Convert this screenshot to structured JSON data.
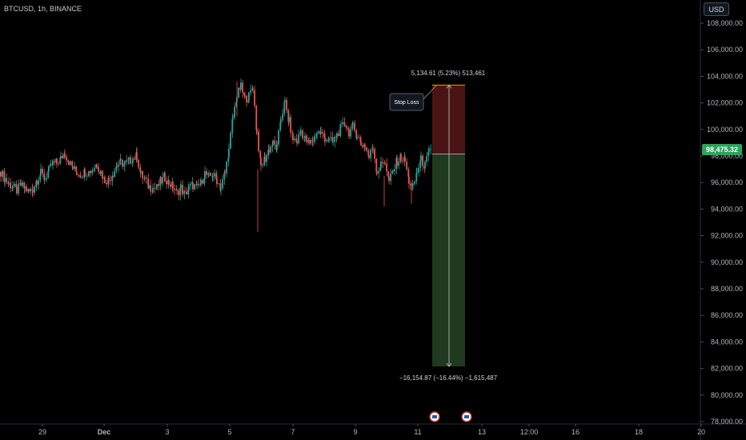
{
  "header": {
    "symbol": "BTCUSD, 1h, BINANCE",
    "currency": "USD"
  },
  "price_tag": "98,475.32",
  "position": {
    "stop_label": "Stop Loss",
    "top_label": "5,134.61 (5.23%) 513,461",
    "bottom_label": "−16,154.87 (−16.44%) −1,615,487",
    "entry": 98150,
    "stop": 103340,
    "target": 82150
  },
  "colors": {
    "up": "#26a69a",
    "down": "#ef5350",
    "stop_zone": "#4a1414",
    "target_zone": "#1f3a1f",
    "stop_line": "#e6a000",
    "price_tag": "#26a65b"
  },
  "icons": [
    "flag-icon",
    "flag-icon"
  ],
  "chart_data": {
    "type": "candlestick",
    "title": "BTCUSD, 1h, BINANCE",
    "ylim": [
      77800,
      109000
    ],
    "y_ticks": [
      "108,000.00",
      "106,000.00",
      "104,000.00",
      "102,000.00",
      "100,000.00",
      "98,000.00",
      "96,000.00",
      "94,000.00",
      "92,000.00",
      "90,000.00",
      "88,000.00",
      "86,000.00",
      "84,000.00",
      "82,000.00",
      "80,000.00",
      "78,000.00"
    ],
    "x_ticks": [
      "29",
      "Dec",
      "3",
      "5",
      "7",
      "9",
      "11",
      "13",
      "12:00",
      "16",
      "18",
      "20"
    ],
    "last_price": 98475.32,
    "series_approx": [
      [
        0,
        96800
      ],
      [
        5,
        96300
      ],
      [
        10,
        95900
      ],
      [
        15,
        95700
      ],
      [
        20,
        95400
      ],
      [
        25,
        95800
      ],
      [
        30,
        95600
      ],
      [
        35,
        95300
      ],
      [
        40,
        95500
      ],
      [
        45,
        96200
      ],
      [
        50,
        96700
      ],
      [
        55,
        96300
      ],
      [
        60,
        96900
      ],
      [
        65,
        97400
      ],
      [
        70,
        97500
      ],
      [
        75,
        97800
      ],
      [
        80,
        98200
      ],
      [
        85,
        97600
      ],
      [
        90,
        97100
      ],
      [
        95,
        96800
      ],
      [
        100,
        96600
      ],
      [
        105,
        96800
      ],
      [
        110,
        96800
      ],
      [
        115,
        97000
      ],
      [
        120,
        97400
      ],
      [
        125,
        96800
      ],
      [
        130,
        96200
      ],
      [
        135,
        96200
      ],
      [
        140,
        96700
      ],
      [
        145,
        97300
      ],
      [
        150,
        97500
      ],
      [
        155,
        97400
      ],
      [
        160,
        97600
      ],
      [
        165,
        97800
      ],
      [
        170,
        98000
      ],
      [
        175,
        96600
      ],
      [
        180,
        96200
      ],
      [
        185,
        95700
      ],
      [
        190,
        95600
      ],
      [
        195,
        95600
      ],
      [
        200,
        96100
      ],
      [
        205,
        96400
      ],
      [
        210,
        96000
      ],
      [
        215,
        95700
      ],
      [
        220,
        95200
      ],
      [
        225,
        95600
      ],
      [
        230,
        95100
      ],
      [
        235,
        95600
      ],
      [
        240,
        95800
      ],
      [
        245,
        95600
      ],
      [
        250,
        95900
      ],
      [
        255,
        96700
      ],
      [
        260,
        96400
      ],
      [
        265,
        96600
      ],
      [
        270,
        96200
      ],
      [
        275,
        95600
      ],
      [
        280,
        96700
      ],
      [
        285,
        98400
      ],
      [
        290,
        100900
      ],
      [
        295,
        102500
      ],
      [
        300,
        103200
      ],
      [
        305,
        102300
      ],
      [
        310,
        102500
      ],
      [
        315,
        103200
      ],
      [
        320,
        99800
      ],
      [
        325,
        97200
      ],
      [
        330,
        97800
      ],
      [
        335,
        98500
      ],
      [
        340,
        98900
      ],
      [
        345,
        98600
      ],
      [
        350,
        100900
      ],
      [
        355,
        102000
      ],
      [
        360,
        100600
      ],
      [
        365,
        99300
      ],
      [
        370,
        99100
      ],
      [
        375,
        99900
      ],
      [
        380,
        99300
      ],
      [
        385,
        98900
      ],
      [
        390,
        99200
      ],
      [
        395,
        99800
      ],
      [
        400,
        99700
      ],
      [
        405,
        99400
      ],
      [
        410,
        99200
      ],
      [
        415,
        99000
      ],
      [
        420,
        99600
      ],
      [
        425,
        100100
      ],
      [
        430,
        100500
      ],
      [
        435,
        99800
      ],
      [
        440,
        100200
      ],
      [
        445,
        99600
      ],
      [
        450,
        98900
      ],
      [
        455,
        98800
      ],
      [
        460,
        97900
      ],
      [
        465,
        98700
      ],
      [
        470,
        96800
      ],
      [
        475,
        97300
      ],
      [
        480,
        97600
      ],
      [
        485,
        96100
      ],
      [
        490,
        96800
      ],
      [
        495,
        97600
      ],
      [
        500,
        97900
      ],
      [
        505,
        97600
      ],
      [
        510,
        96100
      ],
      [
        515,
        95600
      ],
      [
        520,
        96800
      ],
      [
        525,
        97700
      ],
      [
        530,
        97300
      ],
      [
        535,
        98200
      ],
      [
        539,
        98475
      ]
    ]
  }
}
